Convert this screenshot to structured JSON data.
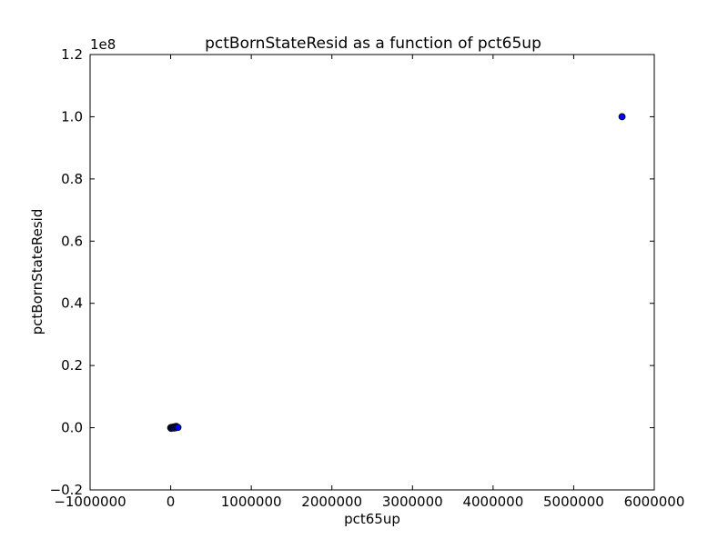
{
  "chart_data": {
    "type": "scatter",
    "title": "pctBornStateResid as a function of pct65up",
    "xlabel": "pct65up",
    "ylabel": "pctBornStateResid",
    "y_offset_label": "1e8",
    "xlim": [
      -1000000,
      6000000
    ],
    "ylim": [
      -0.2,
      1.2
    ],
    "y_scale_factor": 100000000,
    "grid": false,
    "legend": "none",
    "x_ticks": [
      -1000000,
      0,
      1000000,
      2000000,
      3000000,
      4000000,
      5000000,
      6000000
    ],
    "x_tick_labels": [
      "−1000000",
      "0",
      "1000000",
      "2000000",
      "3000000",
      "4000000",
      "5000000",
      "6000000"
    ],
    "y_ticks": [
      -0.2,
      0.0,
      0.2,
      0.4,
      0.6,
      0.8,
      1.0,
      1.2
    ],
    "y_tick_labels": [
      "−0.2",
      "0.0",
      "0.2",
      "0.4",
      "0.6",
      "0.8",
      "1.0",
      "1.2"
    ],
    "marker_color": "#0000ff",
    "marker_edge_color": "#000000",
    "points": [
      {
        "x": 0,
        "y": 0.0
      },
      {
        "x": 5000,
        "y": -0.002
      },
      {
        "x": 10000,
        "y": 0.001
      },
      {
        "x": 20000,
        "y": 0.0
      },
      {
        "x": 30000,
        "y": 0.002
      },
      {
        "x": 40000,
        "y": -0.001
      },
      {
        "x": 50000,
        "y": 0.003
      },
      {
        "x": 60000,
        "y": 0.0
      },
      {
        "x": 70000,
        "y": 0.004
      },
      {
        "x": 80000,
        "y": 0.002
      },
      {
        "x": 90000,
        "y": 0.001
      },
      {
        "x": 5600000,
        "y": 1.0
      }
    ]
  }
}
